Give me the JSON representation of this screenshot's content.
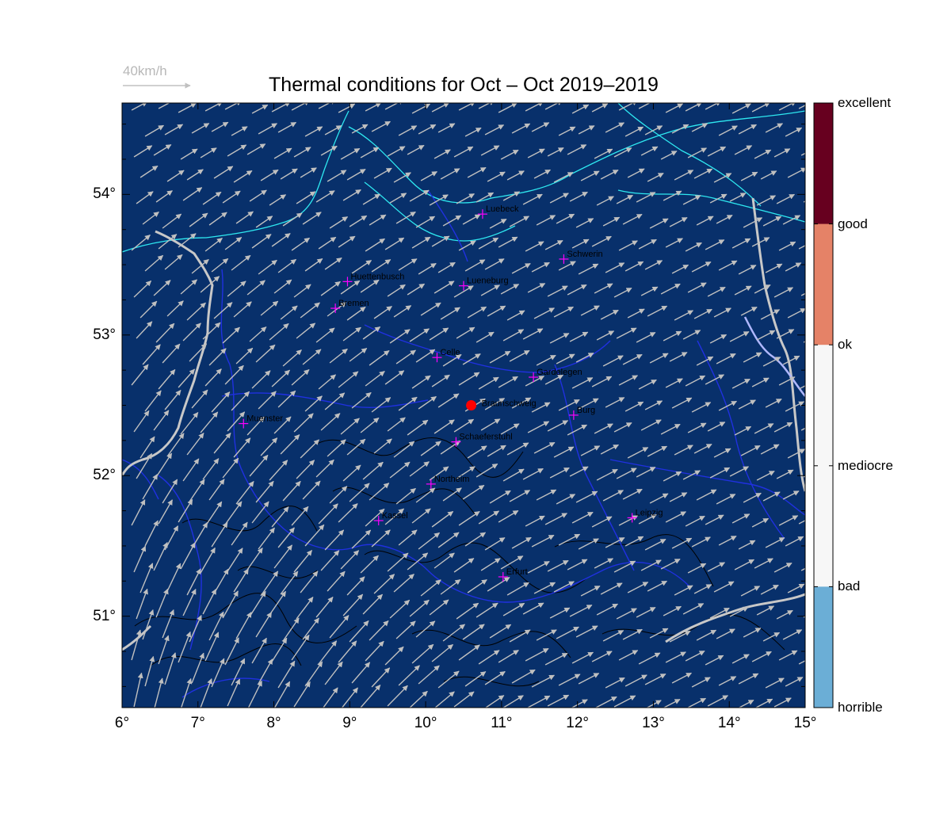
{
  "title": "Thermal conditions for Oct – Oct  2019–2019",
  "reference_arrow": {
    "label": "40km/h"
  },
  "map": {
    "lon_range": [
      6,
      15
    ],
    "lat_range": [
      50.35,
      54.65
    ],
    "background_color": "#08306b",
    "x_ticks": [
      "6°",
      "7°",
      "8°",
      "9°",
      "10°",
      "11°",
      "12°",
      "13°",
      "14°",
      "15°"
    ],
    "y_ticks": [
      {
        "label": "51°",
        "lat": 51
      },
      {
        "label": "52°",
        "lat": 52
      },
      {
        "label": "53°",
        "lat": 53
      },
      {
        "label": "54°",
        "lat": 54
      }
    ],
    "wind_direction": "from south-west",
    "home_site": {
      "name": "Braunschweig",
      "lon": 10.6,
      "lat": 52.5,
      "color": "#ff0000"
    },
    "cities": [
      {
        "name": "Luebeck",
        "lon": 10.75,
        "lat": 53.86
      },
      {
        "name": "Schwerin",
        "lon": 11.82,
        "lat": 53.54
      },
      {
        "name": "Huettenbusch",
        "lon": 8.97,
        "lat": 53.38
      },
      {
        "name": "Lueneburg",
        "lon": 10.5,
        "lat": 53.35
      },
      {
        "name": "Bremen",
        "lon": 8.81,
        "lat": 53.19
      },
      {
        "name": "Celle",
        "lon": 10.15,
        "lat": 52.84
      },
      {
        "name": "Gardelegen",
        "lon": 11.42,
        "lat": 52.7
      },
      {
        "name": "Burg",
        "lon": 11.95,
        "lat": 52.43
      },
      {
        "name": "Muenster",
        "lon": 7.6,
        "lat": 52.37
      },
      {
        "name": "Schaeferstuhl",
        "lon": 10.4,
        "lat": 52.24
      },
      {
        "name": "Northeim",
        "lon": 10.07,
        "lat": 51.94
      },
      {
        "name": "Kassel",
        "lon": 9.38,
        "lat": 51.68
      },
      {
        "name": "Leipzig",
        "lon": 12.72,
        "lat": 51.7
      },
      {
        "name": "Erfurt",
        "lon": 11.02,
        "lat": 51.28
      }
    ]
  },
  "colorbar": {
    "levels": [
      {
        "label": "excellent",
        "color": "#67001f"
      },
      {
        "label": "good",
        "color": "#e58267"
      },
      {
        "label": "ok",
        "color": "#f7f7f7"
      },
      {
        "label": "mediocre",
        "color": "#f7f7f7"
      },
      {
        "label": "bad",
        "color": "#6baed6"
      },
      {
        "label": "horrible",
        "color": "#08306b"
      }
    ]
  }
}
